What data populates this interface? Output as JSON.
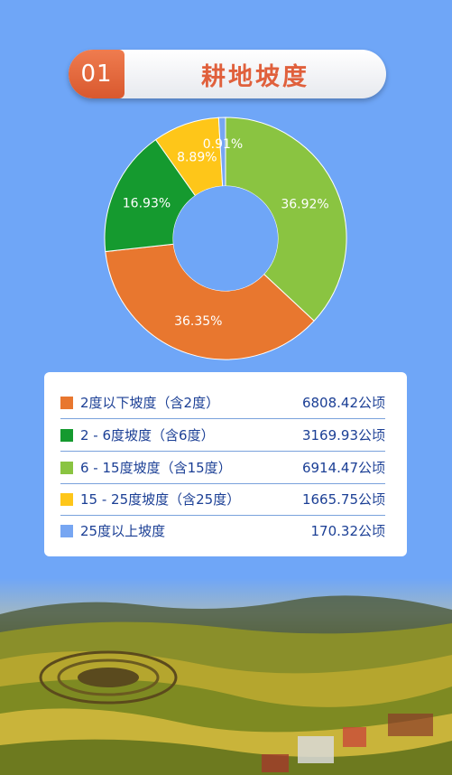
{
  "header": {
    "number": "01",
    "title": "耕地坡度"
  },
  "colors": {
    "background": "#6fa6f7",
    "text": "#1b3f95",
    "accent": "#e0603c"
  },
  "chart_data": {
    "type": "pie",
    "style": "donut",
    "slices": [
      {
        "label": "6 - 15度坡度（含15度）",
        "percent": 36.92,
        "percent_label": "36.92%",
        "color": "#8ac441"
      },
      {
        "label": "2度以下坡度（含2度）",
        "percent": 36.35,
        "percent_label": "36.35%",
        "color": "#e8772f"
      },
      {
        "label": "2 - 6度坡度（含6度）",
        "percent": 16.93,
        "percent_label": "16.93%",
        "color": "#159a2f"
      },
      {
        "label": "15 - 25度坡度（含25度）",
        "percent": 8.89,
        "percent_label": "8.89%",
        "color": "#fec619"
      },
      {
        "label": "25度以上坡度",
        "percent": 0.91,
        "percent_label": "0.91%",
        "color": "#77a6f2"
      }
    ]
  },
  "legend": [
    {
      "label": "2度以下坡度（含2度）",
      "value": "6808.42公顷",
      "color": "#e8772f"
    },
    {
      "label": "2 - 6度坡度（含6度）",
      "value": "3169.93公顷",
      "color": "#159a2f"
    },
    {
      "label": "6 - 15度坡度（含15度）",
      "value": "6914.47公顷",
      "color": "#8ac441"
    },
    {
      "label": "15 - 25度坡度（含25度）",
      "value": "1665.75公顷",
      "color": "#fec619"
    },
    {
      "label": "25度以上坡度",
      "value": "170.32公顷",
      "color": "#77a6f2"
    }
  ]
}
